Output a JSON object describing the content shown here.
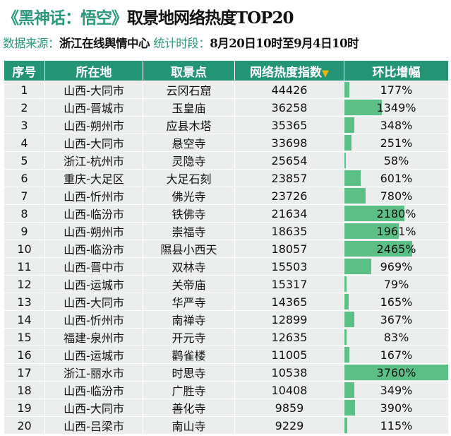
{
  "title": {
    "game": "《黑神话：悟空》",
    "rest": "取景地网络热度TOP20"
  },
  "subtitle": {
    "source_label": "数据来源：",
    "source": "浙江在线舆情中心",
    "period_label": "统计时段：",
    "period": "8月20日10时至9月4日10时"
  },
  "columns": [
    "序号",
    "所在地",
    "取景点",
    "网络热度指数",
    "环比增幅"
  ],
  "sort_icon": "triangle-down",
  "colors": {
    "header": "#249574",
    "bar": "#5cc086",
    "accent": "#2a9a78",
    "sort": "#f2b600"
  },
  "bar_max_pct": 3760,
  "rows": [
    {
      "rank": "1",
      "location": "山西-大同市",
      "site": "云冈石窟",
      "heat": "44426",
      "growth": "177%",
      "growth_value": 177
    },
    {
      "rank": "2",
      "location": "山西-晋城市",
      "site": "玉皇庙",
      "heat": "36258",
      "growth": "1349%",
      "growth_value": 1349
    },
    {
      "rank": "3",
      "location": "山西-朔州市",
      "site": "应县木塔",
      "heat": "35365",
      "growth": "348%",
      "growth_value": 348
    },
    {
      "rank": "4",
      "location": "山西-大同市",
      "site": "悬空寺",
      "heat": "33698",
      "growth": "251%",
      "growth_value": 251
    },
    {
      "rank": "5",
      "location": "浙江-杭州市",
      "site": "灵隐寺",
      "heat": "25654",
      "growth": "58%",
      "growth_value": 58
    },
    {
      "rank": "6",
      "location": "重庆-大足区",
      "site": "大足石刻",
      "heat": "23857",
      "growth": "601%",
      "growth_value": 601
    },
    {
      "rank": "7",
      "location": "山西-忻州市",
      "site": "佛光寺",
      "heat": "23726",
      "growth": "780%",
      "growth_value": 780
    },
    {
      "rank": "8",
      "location": "山西-临汾市",
      "site": "铁佛寺",
      "heat": "21634",
      "growth": "2180%",
      "growth_value": 2180
    },
    {
      "rank": "9",
      "location": "山西-朔州市",
      "site": "崇福寺",
      "heat": "18635",
      "growth": "1961%",
      "growth_value": 1961
    },
    {
      "rank": "10",
      "location": "山西-临汾市",
      "site": "隰县小西天",
      "heat": "18057",
      "growth": "2465%",
      "growth_value": 2465
    },
    {
      "rank": "11",
      "location": "山西-晋中市",
      "site": "双林寺",
      "heat": "15503",
      "growth": "969%",
      "growth_value": 969
    },
    {
      "rank": "12",
      "location": "山西-运城市",
      "site": "关帝庙",
      "heat": "15317",
      "growth": "79%",
      "growth_value": 79
    },
    {
      "rank": "13",
      "location": "山西-大同市",
      "site": "华严寺",
      "heat": "14365",
      "growth": "165%",
      "growth_value": 165
    },
    {
      "rank": "14",
      "location": "山西-忻州市",
      "site": "南禅寺",
      "heat": "12899",
      "growth": "367%",
      "growth_value": 367
    },
    {
      "rank": "15",
      "location": "福建-泉州市",
      "site": "开元寺",
      "heat": "12635",
      "growth": "83%",
      "growth_value": 83
    },
    {
      "rank": "16",
      "location": "山西-运城市",
      "site": "鹳雀楼",
      "heat": "11005",
      "growth": "167%",
      "growth_value": 167
    },
    {
      "rank": "17",
      "location": "浙江-丽水市",
      "site": "时思寺",
      "heat": "10538",
      "growth": "3760%",
      "growth_value": 3760
    },
    {
      "rank": "18",
      "location": "山西-临汾市",
      "site": "广胜寺",
      "heat": "10408",
      "growth": "349%",
      "growth_value": 349
    },
    {
      "rank": "19",
      "location": "山西-大同市",
      "site": "善化寺",
      "heat": "9859",
      "growth": "390%",
      "growth_value": 390
    },
    {
      "rank": "20",
      "location": "山西-吕梁市",
      "site": "南山寺",
      "heat": "9229",
      "growth": "115%",
      "growth_value": 115
    }
  ]
}
